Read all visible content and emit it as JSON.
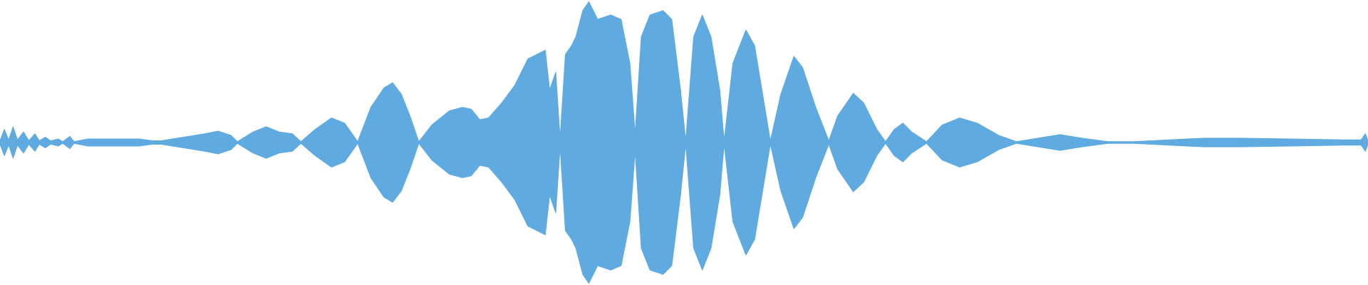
{
  "chart_data": {
    "type": "waveform",
    "color": "#5eaae1",
    "xlim": [
      0,
      1568
    ],
    "ylim": [
      -162,
      162
    ],
    "x": [
      0,
      5,
      10,
      15,
      20,
      27,
      33,
      40,
      45,
      52,
      58,
      67,
      72,
      80,
      85,
      100,
      120,
      140,
      160,
      175,
      185,
      210,
      235,
      250,
      265,
      272,
      290,
      305,
      320,
      335,
      345,
      360,
      380,
      395,
      410,
      425,
      440,
      450,
      460,
      470,
      480,
      495,
      515,
      530,
      540,
      550,
      560,
      575,
      590,
      605,
      615,
      625,
      630,
      637,
      642,
      648,
      655,
      660,
      668,
      675,
      685,
      700,
      712,
      722,
      728,
      735,
      745,
      760,
      770,
      780,
      786,
      795,
      805,
      815,
      825,
      830,
      840,
      855,
      865,
      875,
      883,
      895,
      910,
      920,
      935,
      950,
      960,
      978,
      990,
      1005,
      1015,
      1025,
      1035,
      1045,
      1062,
      1080,
      1100,
      1120,
      1145,
      1165,
      1190,
      1215,
      1240,
      1270,
      1300,
      1340,
      1380,
      1420,
      1480,
      1540,
      1560,
      1565,
      1568
    ],
    "values": [
      2,
      15,
      3,
      18,
      3,
      12,
      2,
      10,
      2,
      6,
      2,
      4,
      1,
      7,
      1,
      4,
      4,
      4,
      4,
      2,
      2,
      6,
      10,
      13,
      8,
      1,
      12,
      18,
      12,
      10,
      1,
      14,
      28,
      22,
      1,
      40,
      62,
      68,
      55,
      30,
      1,
      20,
      36,
      40,
      38,
      26,
      28,
      45,
      65,
      95,
      100,
      105,
      60,
      80,
      5,
      100,
      110,
      120,
      150,
      160,
      140,
      145,
      140,
      90,
      10,
      120,
      145,
      150,
      140,
      60,
      2,
      120,
      145,
      120,
      60,
      2,
      90,
      128,
      110,
      50,
      2,
      55,
      98,
      85,
      40,
      2,
      30,
      56,
      45,
      15,
      1,
      15,
      22,
      12,
      1,
      20,
      28,
      22,
      8,
      1,
      5,
      9,
      5,
      1,
      1,
      3,
      5,
      5,
      4,
      3,
      3,
      10,
      2
    ]
  }
}
